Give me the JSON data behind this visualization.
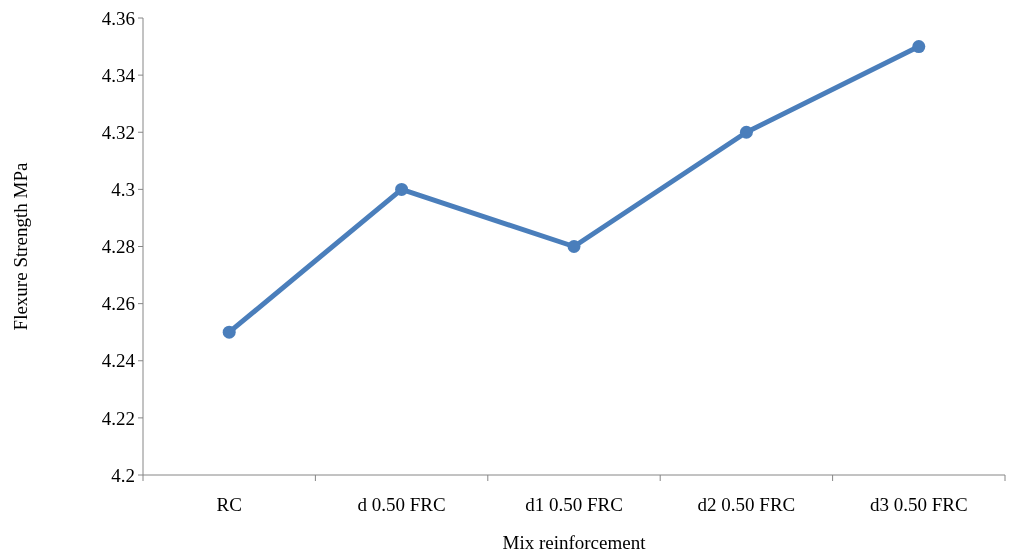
{
  "chart_data": {
    "type": "line",
    "xlabel": "Mix reinforcement",
    "ylabel": "Flexure Strength MPa",
    "categories": [
      "RC",
      "d 0.50 FRC",
      "d1 0.50 FRC",
      "d2 0.50 FRC",
      "d3 0.50 FRC"
    ],
    "series": [
      {
        "color": "#4a7ebb",
        "values": [
          4.25,
          4.3,
          4.28,
          4.32,
          4.35
        ]
      }
    ],
    "ylim": [
      4.2,
      4.36
    ],
    "yticks": [
      4.2,
      4.22,
      4.24,
      4.26,
      4.28,
      4.3,
      4.32,
      4.34,
      4.36
    ],
    "grid": false,
    "marker": "circle",
    "line_style": "solid"
  }
}
